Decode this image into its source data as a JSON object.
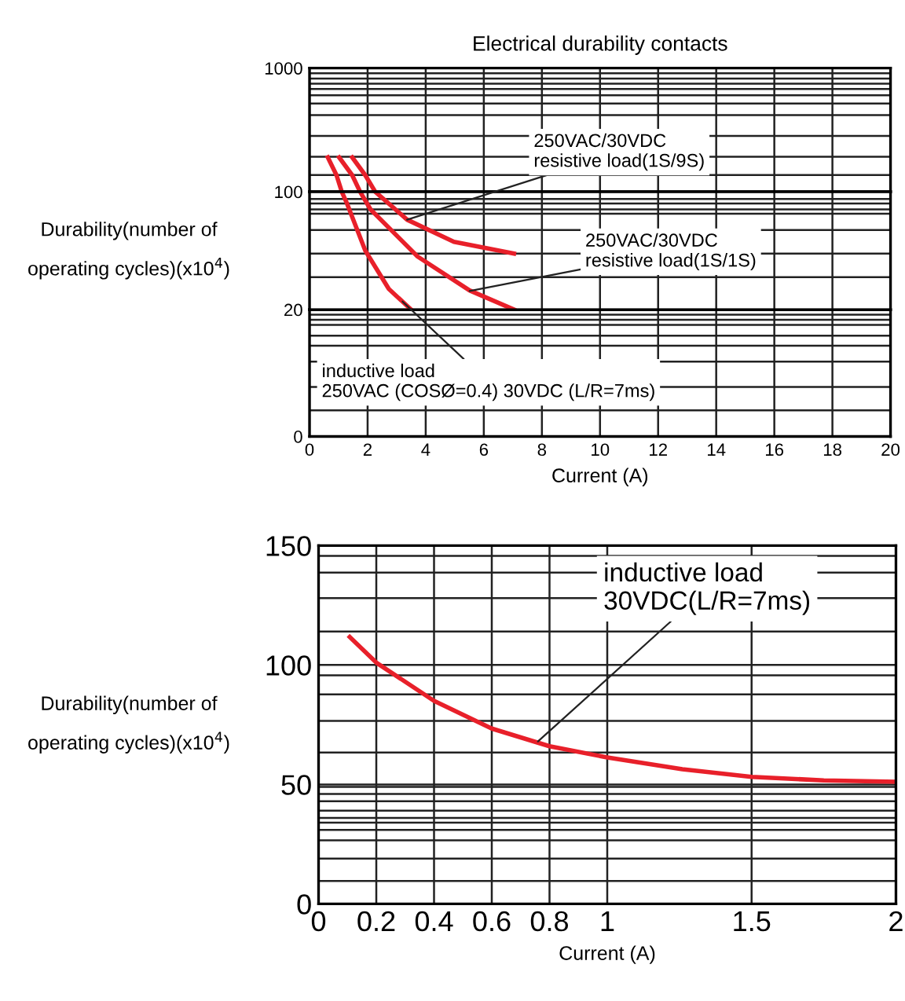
{
  "chart_data": [
    {
      "type": "line",
      "title": "Electrical durability contacts",
      "series": [
        {
          "color": "#e8202a",
          "x": [
            0.63,
            0.93,
            1.11
          ],
          "values": [
            350,
            220,
            100
          ]
        },
        {
          "color": "#e8202a",
          "x": [
            1.02,
            1.47,
            1.74
          ],
          "values": [
            350,
            220,
            100
          ]
        },
        {
          "color": "#e8202a",
          "x": [
            1.47,
            1.92,
            2.26
          ],
          "values": [
            350,
            220,
            100
          ]
        }
      ],
      "xlim": [
        0,
        20
      ],
      "xticks": [
        {
          "value": 0,
          "label": null
        },
        {
          "value": 2,
          "label": null
        },
        {
          "value": 4,
          "label": null
        },
        {
          "value": 6,
          "label": null
        },
        {
          "value": 8,
          "label": null
        },
        {
          "value": 10,
          "label": null
        },
        {
          "value": 12,
          "label": null
        },
        {
          "value": 14,
          "label": null
        },
        {
          "value": 16,
          "label": null
        },
        {
          "value": 18,
          "label": null
        },
        {
          "value": 20,
          "label": null
        }
      ],
      "ylim": [
        100,
        1000
      ],
      "yticks": [
        100,
        {
          "value": 222,
          "label": null
        },
        {
          "value": 354,
          "label": null
        },
        {
          "value": 506,
          "label": null
        },
        {
          "value": 658,
          "label": null
        },
        {
          "value": 742,
          "label": null
        },
        {
          "value": 802,
          "label": null
        },
        {
          "value": 848,
          "label": null
        },
        {
          "value": 886,
          "label": null
        },
        {
          "value": 924,
          "label": null
        },
        {
          "value": 962,
          "label": null
        },
        1000
      ],
      "tick_labels": "y",
      "grid": true,
      "line_style": "solid",
      "marker": "none"
    },
    {
      "type": "line",
      "ylabel": "Durability(number of\noperating cycles)(x10$^{4}$)",
      "series": [
        {
          "color": "#e8202a",
          "x": [
            1.11,
            1.29,
            1.92,
            2.73,
            3.5
          ],
          "values": [
            100,
            92,
            60,
            34,
            20
          ]
        },
        {
          "color": "#e8202a",
          "x": [
            1.74,
            2.1,
            3.72,
            5.51,
            7.04
          ],
          "values": [
            100,
            88,
            56,
            33,
            20
          ]
        },
        {
          "color": "#e8202a",
          "x": [
            2.26,
            3.36,
            4.97,
            7.04
          ],
          "values": [
            100,
            81,
            66,
            58
          ]
        }
      ],
      "xlim": [
        0,
        20
      ],
      "xticks": [
        {
          "value": 0,
          "label": null
        },
        {
          "value": 2,
          "label": null
        },
        {
          "value": 4,
          "label": null
        },
        {
          "value": 6,
          "label": null
        },
        {
          "value": 8,
          "label": null
        },
        {
          "value": 10,
          "label": null
        },
        {
          "value": 12,
          "label": null
        },
        {
          "value": 14,
          "label": null
        },
        {
          "value": 16,
          "label": null
        },
        {
          "value": 18,
          "label": null
        },
        {
          "value": 20,
          "label": null
        }
      ],
      "ylim": [
        20,
        100
      ],
      "yticks": [
        20,
        {
          "value": 42,
          "label": null
        },
        {
          "value": 58,
          "label": null
        },
        {
          "value": 74,
          "label": null
        },
        {
          "value": 85,
          "label": null
        },
        {
          "value": 88,
          "label": null
        },
        {
          "value": 92,
          "label": null
        },
        {
          "value": 95,
          "label": null
        },
        100
      ],
      "tick_labels": false,
      "grid": true,
      "line_style": "solid",
      "marker": "none",
      "annotations": [
        {
          "text": "250VAC/30VDC\nresistive load(1S/9S)",
          "x": 3.36,
          "y": 81
        },
        {
          "text": "250VAC/30VDC\nresistive load(1S/1S)",
          "x": 5.51,
          "y": 32.6
        },
        {
          "text": "inductive load\n250VAC (COSØ=0.4) 30VDC (L/R=7ms)",
          "x": 3.2,
          "y": 25.5
        }
      ]
    },
    {
      "type": "line",
      "xlabel": "Current (A)",
      "xlim": [
        0,
        20
      ],
      "xticks": [
        0,
        2,
        4,
        6,
        8,
        10,
        12,
        14,
        16,
        18,
        20
      ],
      "ylim": [
        0,
        20
      ],
      "yticks": [
        0,
        {
          "value": 4.1,
          "label": null
        },
        {
          "value": 7.8,
          "label": null
        },
        {
          "value": 11.8,
          "label": null
        },
        {
          "value": 14.3,
          "label": null
        },
        {
          "value": 15.9,
          "label": null
        },
        {
          "value": 17.6,
          "label": null
        },
        {
          "value": 18.4,
          "label": null
        },
        {
          "value": 19.2,
          "label": null
        },
        20
      ],
      "grid": true
    },
    {
      "type": "line",
      "xlabel": "Current (A)",
      "ylabel": "Durability(number of\noperating cycles)(x10$^{4}$)",
      "series": [
        {
          "color": "#e8202a",
          "x": [
            0.108,
            0.2,
            0.4,
            0.6,
            0.8,
            1.0,
            1.26,
            1.5,
            1.75,
            2.0
          ],
          "values": [
            111.7,
            101,
            85,
            73.4,
            66,
            61.3,
            56.4,
            53.2,
            51.7,
            51.1
          ]
        }
      ],
      "xlim": [
        0,
        2
      ],
      "xticks": [
        0,
        0.2,
        0.4,
        0.6,
        0.8,
        1,
        1.5,
        2
      ],
      "ylim": [
        0,
        150
      ],
      "yticks": [
        0,
        {
          "value": 9.6,
          "label": null
        },
        {
          "value": 19,
          "label": null
        },
        {
          "value": 26.6,
          "label": null
        },
        {
          "value": 31,
          "label": null
        },
        {
          "value": 34,
          "label": null
        },
        {
          "value": 36,
          "label": null
        },
        {
          "value": 39,
          "label": null
        },
        {
          "value": 43,
          "label": null
        },
        {
          "value": 46,
          "label": null
        },
        {
          "value": 49,
          "label": null
        },
        50,
        {
          "value": 63.4,
          "label": null
        },
        {
          "value": 76.6,
          "label": null
        },
        {
          "value": 87.7,
          "label": null
        },
        {
          "value": 95.7,
          "label": null
        },
        100,
        {
          "value": 114,
          "label": null
        },
        {
          "value": 128,
          "label": null
        },
        {
          "value": 138.7,
          "label": null
        },
        {
          "value": 145.7,
          "label": null
        },
        150
      ],
      "grid": true,
      "line_style": "solid",
      "marker": "none",
      "annotations": [
        {
          "text": "inductive load\n30VDC(L/R=7ms)",
          "x": 0.76,
          "y": 68
        }
      ]
    }
  ]
}
